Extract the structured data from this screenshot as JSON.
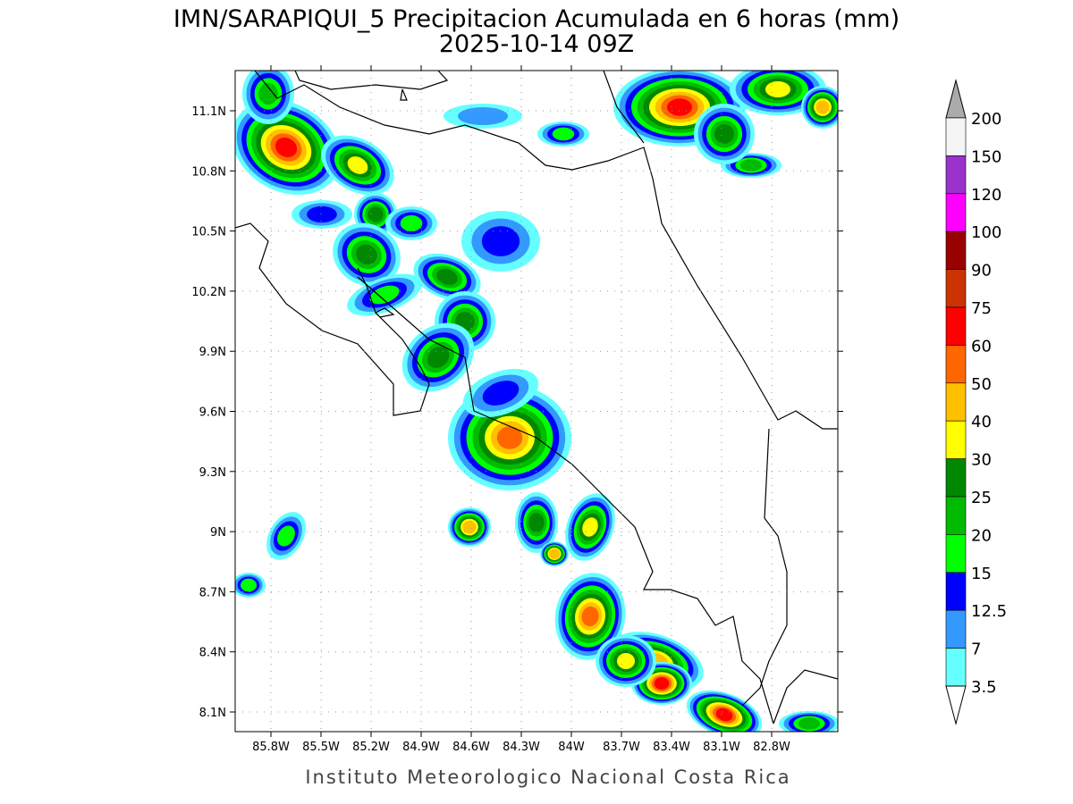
{
  "header": {
    "title": "IMN/SARAPIQUI_5 Precipitacion Acumulada en 6 horas (mm)",
    "subtitle": "2025-10-14 09Z"
  },
  "map": {
    "lat_labels": [
      "11.1N",
      "10.8N",
      "10.5N",
      "10.2N",
      "9.9N",
      "9.6N",
      "9.3N",
      "9N",
      "8.7N",
      "8.4N",
      "8.1N"
    ],
    "lon_labels": [
      "85.8W",
      "85.5W",
      "85.2W",
      "84.9W",
      "84.6W",
      "84.3W",
      "84W",
      "83.7W",
      "83.4W",
      "83.1W",
      "82.8W"
    ]
  },
  "colorbar": {
    "labels": [
      "200",
      "150",
      "120",
      "100",
      "90",
      "75",
      "60",
      "50",
      "40",
      "30",
      "25",
      "20",
      "15",
      "12.5",
      "7",
      "3.5"
    ],
    "colors": [
      "#f5f5f5",
      "#9933cc",
      "#ff00ff",
      "#990000",
      "#cc3300",
      "#ff0000",
      "#ff6600",
      "#ffc000",
      "#ffff00",
      "#008800",
      "#00bb00",
      "#00ff00",
      "#0000ff",
      "#3399ff",
      "#66ffff"
    ],
    "top_color": "#aaaaaa",
    "bottom_color": "#ffffff"
  },
  "footer": {
    "text": "Instituto Meteorologico Nacional Costa Rica"
  }
}
